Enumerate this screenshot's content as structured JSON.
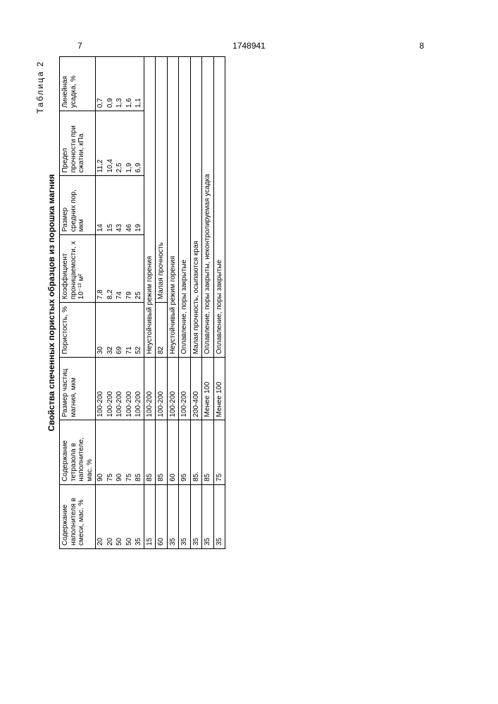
{
  "page": {
    "left_num": "7",
    "right_num": "8",
    "doc_num": "1748941"
  },
  "table": {
    "label": "Таблица 2",
    "title": "Свойства спеченных пористых образцов из порошка магния",
    "headers": {
      "a": "Содержание наполнителя в смеси, мас. %",
      "b": "Содержание тетразола в наполнителе, мас. %",
      "c": "Размер частиц магния, мкм",
      "d": "Пористость, %",
      "e": "Коэффициент проницаемости, х 10⁻¹³ м²",
      "f": "Размер средних пор, мкм",
      "g": "Предел прочности при сжатии, кПа",
      "h": "Линейная усадка, %"
    },
    "block1": [
      {
        "a": "20",
        "b": "90",
        "c": "100-200",
        "d": "30",
        "e": "7,8",
        "f": "14",
        "g": "11,2",
        "h": "0,7"
      },
      {
        "a": "20",
        "b": "75",
        "c": "100-200",
        "d": "32",
        "e": "8,2",
        "f": "15",
        "g": "10,4",
        "h": "0,9"
      },
      {
        "a": "50",
        "b": "90",
        "c": "100-200",
        "d": "69",
        "e": "74",
        "f": "43",
        "g": "2,5",
        "h": "1,3"
      },
      {
        "a": "50",
        "b": "75",
        "c": "100-200",
        "d": "71",
        "e": "79",
        "f": "46",
        "g": "1,9",
        "h": "1,6"
      },
      {
        "a": "35",
        "b": "85",
        "c": "100-200",
        "d": "52",
        "e": "25",
        "f": "19",
        "g": "6,9",
        "h": "1,1"
      }
    ],
    "notes": [
      {
        "a": "15",
        "b": "85",
        "c": "100-200",
        "span": "Неустойчивый режим горения"
      },
      {
        "a": "60",
        "b": "85",
        "c": "100-200",
        "d": "82",
        "span": "Малая прочность"
      },
      {
        "a": "35",
        "b": "60",
        "c": "100-200",
        "span": "Неустойчивый режим горения"
      },
      {
        "a": "35",
        "b": "95",
        "c": "100-200",
        "span": "Оплавление, поры закрытые"
      },
      {
        "a": "35",
        "b": "85.",
        "c": "200-400",
        "span": "Малая прочность, осыпаются края"
      },
      {
        "a": "35",
        "b": "85",
        "c": "Менее 100",
        "span": "Оплавление, поры закрыты, неконтролируемая усадка"
      },
      {
        "a": "35",
        "b": "75",
        "c": "Менее 100",
        "span": "Оплавление, поры закрытые"
      }
    ]
  }
}
